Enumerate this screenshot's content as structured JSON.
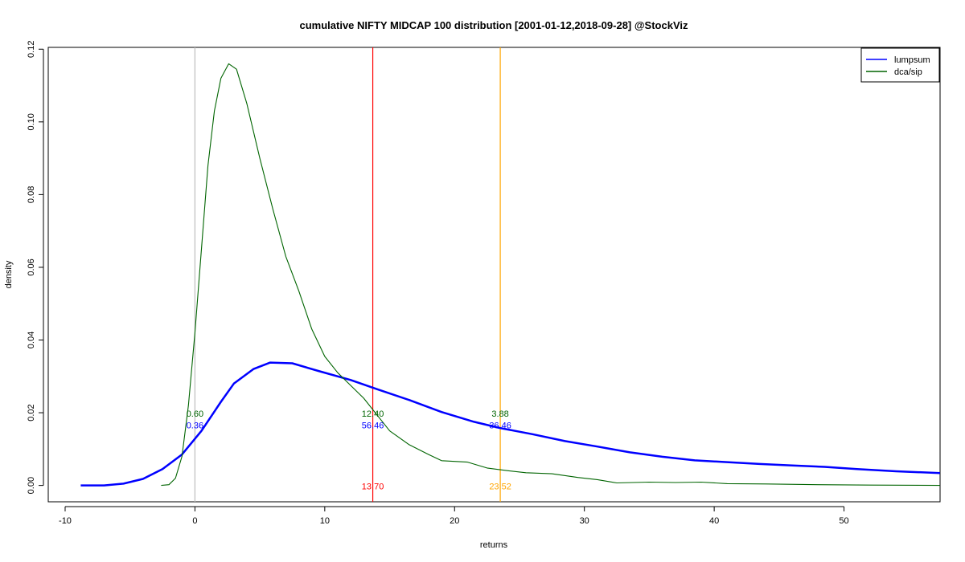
{
  "chart_data": {
    "type": "line",
    "title": "cumulative NIFTY MIDCAP 100 distribution [2001-01-12,2018-09-28] @StockViz",
    "xlabel": "returns",
    "ylabel": "density",
    "xlim": [
      -11.3,
      57.4
    ],
    "ylim": [
      -0.0045,
      0.1205
    ],
    "xticks": [
      -10,
      0,
      10,
      20,
      30,
      40,
      50
    ],
    "yticks": [
      0.0,
      0.02,
      0.04,
      0.06,
      0.08,
      0.1,
      0.12
    ],
    "ytick_labels": [
      "0.00",
      "0.02",
      "0.04",
      "0.06",
      "0.08",
      "0.10",
      "0.12"
    ],
    "grid": false,
    "legend_position": "top-right",
    "series": [
      {
        "name": "lumpsum",
        "color": "#0000ff",
        "points": [
          [
            -8.8,
            0.0
          ],
          [
            -7.0,
            0.0
          ],
          [
            -5.5,
            0.0005
          ],
          [
            -4.0,
            0.0018
          ],
          [
            -2.5,
            0.0045
          ],
          [
            -1.0,
            0.0085
          ],
          [
            0.5,
            0.015
          ],
          [
            2.0,
            0.023
          ],
          [
            3.0,
            0.028
          ],
          [
            4.5,
            0.032
          ],
          [
            5.8,
            0.0338
          ],
          [
            7.5,
            0.0336
          ],
          [
            9.5,
            0.0315
          ],
          [
            12.0,
            0.029
          ],
          [
            14.0,
            0.0265
          ],
          [
            16.5,
            0.0235
          ],
          [
            19.0,
            0.0202
          ],
          [
            21.5,
            0.0175
          ],
          [
            23.5,
            0.0158
          ],
          [
            26.0,
            0.0141
          ],
          [
            28.5,
            0.0122
          ],
          [
            31.0,
            0.0107
          ],
          [
            33.5,
            0.0091
          ],
          [
            36.0,
            0.0079
          ],
          [
            38.5,
            0.0069
          ],
          [
            41.0,
            0.0064
          ],
          [
            43.5,
            0.0059
          ],
          [
            46.0,
            0.0055
          ],
          [
            48.5,
            0.0051
          ],
          [
            51.0,
            0.0045
          ],
          [
            54.0,
            0.0039
          ],
          [
            57.4,
            0.0034
          ]
        ]
      },
      {
        "name": "dca/sip",
        "color": "#006400",
        "points": [
          [
            -2.6,
            0.0
          ],
          [
            -2.0,
            0.0002
          ],
          [
            -1.5,
            0.002
          ],
          [
            -1.0,
            0.008
          ],
          [
            -0.5,
            0.022
          ],
          [
            0.0,
            0.042
          ],
          [
            0.5,
            0.065
          ],
          [
            1.0,
            0.088
          ],
          [
            1.5,
            0.103
          ],
          [
            2.0,
            0.112
          ],
          [
            2.6,
            0.116
          ],
          [
            3.2,
            0.1145
          ],
          [
            4.0,
            0.105
          ],
          [
            5.0,
            0.09
          ],
          [
            6.0,
            0.076
          ],
          [
            7.0,
            0.063
          ],
          [
            8.0,
            0.0535
          ],
          [
            9.0,
            0.043
          ],
          [
            10.0,
            0.0355
          ],
          [
            11.0,
            0.031
          ],
          [
            12.0,
            0.0275
          ],
          [
            13.0,
            0.024
          ],
          [
            14.0,
            0.0195
          ],
          [
            15.0,
            0.015
          ],
          [
            16.5,
            0.0112
          ],
          [
            18.0,
            0.0085
          ],
          [
            19.0,
            0.0068
          ],
          [
            21.0,
            0.0064
          ],
          [
            22.5,
            0.0048
          ],
          [
            24.0,
            0.0041
          ],
          [
            25.5,
            0.0035
          ],
          [
            27.5,
            0.0032
          ],
          [
            29.5,
            0.0022
          ],
          [
            31.0,
            0.0016
          ],
          [
            32.5,
            0.0007
          ],
          [
            35.0,
            0.0009
          ],
          [
            37.0,
            0.0008
          ],
          [
            39.0,
            0.0009
          ],
          [
            41.0,
            0.0005
          ],
          [
            44.0,
            0.0004
          ],
          [
            48.0,
            0.0002
          ],
          [
            52.0,
            0.0001
          ],
          [
            57.4,
            0.0
          ]
        ]
      }
    ],
    "vlines": [
      {
        "x": 0.0,
        "color": "#bebebe"
      },
      {
        "x": 13.7,
        "color": "#ff0000"
      },
      {
        "x": 23.52,
        "color": "#ffa500"
      }
    ],
    "annotations": [
      {
        "x": 0.0,
        "y": 0.0198,
        "text": "0.60",
        "color": "#006400"
      },
      {
        "x": 0.0,
        "y": 0.0166,
        "text": "0.36",
        "color": "#0000ff"
      },
      {
        "x": 13.7,
        "y": 0.0198,
        "text": "12.40",
        "color": "#006400"
      },
      {
        "x": 13.7,
        "y": 0.0166,
        "text": "56.46",
        "color": "#0000ff"
      },
      {
        "x": 23.52,
        "y": 0.0198,
        "text": "3.88",
        "color": "#006400"
      },
      {
        "x": 23.52,
        "y": 0.0166,
        "text": "36.46",
        "color": "#0000ff"
      },
      {
        "x": 13.7,
        "y": -0.0002,
        "text": "13.70",
        "color": "#ff0000"
      },
      {
        "x": 23.52,
        "y": -0.0002,
        "text": "23.52",
        "color": "#ffa500"
      }
    ]
  }
}
